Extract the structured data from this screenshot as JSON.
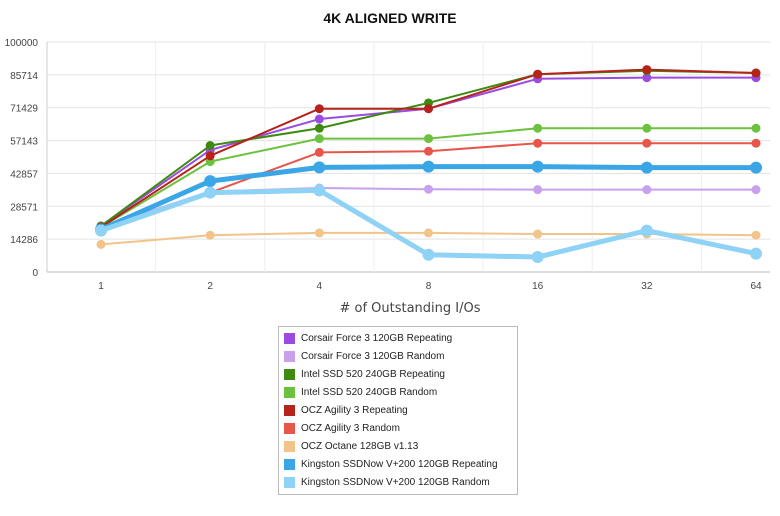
{
  "chart_data": {
    "type": "line",
    "title": "4K ALIGNED WRITE",
    "xlabel": "# of Outstanding I/Os",
    "ylabel": "",
    "categories": [
      "1",
      "2",
      "4",
      "8",
      "16",
      "32",
      "64"
    ],
    "ylim": [
      0,
      100000
    ],
    "yticks": [
      "0",
      "14286",
      "28571",
      "42857",
      "57143",
      "71429",
      "85714",
      "100000"
    ],
    "grid": true,
    "legend_position": "bottom",
    "series": [
      {
        "name": "Corsair Force 3 120GB Repeating",
        "color": "#9b4be0",
        "values": [
          20000,
          53000,
          66500,
          71000,
          84000,
          84500,
          84500
        ]
      },
      {
        "name": "Corsair Force 3 120GB Random",
        "color": "#c9a0ee",
        "values": [
          19500,
          35000,
          36500,
          36000,
          35800,
          35800,
          35800
        ]
      },
      {
        "name": "Intel SSD 520 240GB Repeating",
        "color": "#3c8a10",
        "values": [
          20000,
          55000,
          62500,
          73500,
          86000,
          87500,
          86500
        ]
      },
      {
        "name": "Intel SSD 520 240GB Random",
        "color": "#6cc23e",
        "values": [
          19500,
          48000,
          58000,
          58000,
          62500,
          62500,
          62500
        ]
      },
      {
        "name": "OCZ Agility 3 Repeating",
        "color": "#b5231a",
        "values": [
          19500,
          50500,
          71000,
          71000,
          86000,
          88000,
          86500
        ]
      },
      {
        "name": "OCZ Agility 3 Random",
        "color": "#e8554a",
        "values": [
          19000,
          34500,
          52000,
          52500,
          56000,
          56000,
          56000
        ]
      },
      {
        "name": "OCZ Octane 128GB v1.13",
        "color": "#f2c48a",
        "values": [
          12000,
          16000,
          17000,
          17000,
          16500,
          16500,
          16000
        ]
      },
      {
        "name": "Kingston SSDNow V+200 120GB Repeating",
        "color": "#3aa6e6",
        "values": [
          18500,
          39500,
          45500,
          45800,
          45800,
          45400,
          45400
        ]
      },
      {
        "name": "Kingston SSDNow V+200 120GB Random",
        "color": "#8ed2f5",
        "values": [
          18000,
          34500,
          35500,
          7500,
          6500,
          18000,
          8000
        ]
      }
    ]
  }
}
